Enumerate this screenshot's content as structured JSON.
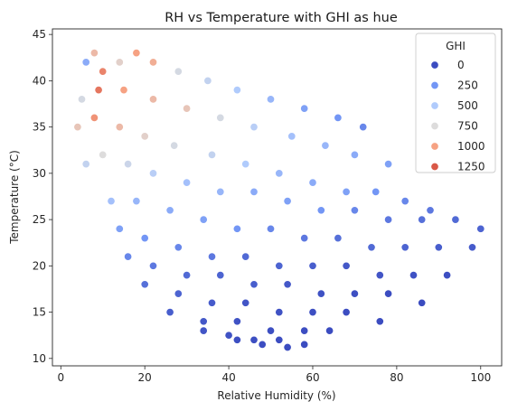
{
  "chart_data": {
    "type": "scatter",
    "title": "RH vs Temperature with GHI as hue",
    "xlabel": "Relative Humidity (%)",
    "ylabel": "Temperature (°C)",
    "xlim": [
      -2,
      105
    ],
    "ylim": [
      9.2,
      45.6
    ],
    "x_ticks": [
      0,
      20,
      40,
      60,
      80,
      100
    ],
    "y_ticks": [
      10,
      15,
      20,
      25,
      30,
      35,
      40,
      45
    ],
    "grid": false,
    "hue": {
      "name": "GHI",
      "palette": "coolwarm",
      "range": [
        0,
        1300
      ],
      "legend_values": [
        0,
        250,
        500,
        750,
        1000,
        1250
      ],
      "legend_colors": [
        "#3b4cc0",
        "#7396f5",
        "#b0cbfc",
        "#dddcdc",
        "#f6a283",
        "#d95847"
      ]
    },
    "legend_placement": "top-right",
    "marker_edge_color": "#ffffff",
    "series": [
      {
        "x": [
          6,
          8,
          10,
          14,
          18,
          22,
          28,
          35,
          42,
          50,
          58,
          66,
          72,
          5,
          9,
          15,
          22,
          30,
          38,
          46,
          55,
          63,
          70,
          78,
          4,
          8,
          14,
          20,
          27,
          36,
          44,
          52,
          60,
          68,
          75,
          82,
          88,
          6,
          10,
          16,
          22,
          30,
          38,
          46,
          54,
          62,
          70,
          78,
          86,
          94,
          100,
          12,
          18,
          26,
          34,
          42,
          50,
          58,
          66,
          74,
          82,
          90,
          98,
          14,
          20,
          28,
          36,
          44,
          52,
          60,
          68,
          76,
          84,
          92,
          16,
          22,
          30,
          38,
          46,
          54,
          62,
          70,
          78,
          86,
          20,
          28,
          36,
          44,
          52,
          60,
          68,
          76,
          26,
          34,
          42,
          50,
          58,
          64,
          34,
          40,
          46,
          52,
          58,
          42,
          48,
          54
        ],
        "y": [
          42,
          43,
          41,
          42,
          43,
          42,
          41,
          40,
          39,
          38,
          37,
          36,
          35,
          38,
          39,
          39,
          38,
          37,
          36,
          35,
          34,
          33,
          32,
          31,
          35,
          36,
          35,
          34,
          33,
          32,
          31,
          30,
          29,
          28,
          28,
          27,
          26,
          31,
          32,
          31,
          30,
          29,
          28,
          28,
          27,
          26,
          26,
          25,
          25,
          25,
          24,
          27,
          27,
          26,
          25,
          24,
          24,
          23,
          23,
          22,
          22,
          22,
          22,
          24,
          23,
          22,
          21,
          21,
          20,
          20,
          20,
          19,
          19,
          19,
          21,
          20,
          19,
          19,
          18,
          18,
          17,
          17,
          17,
          16,
          18,
          17,
          16,
          16,
          15,
          15,
          15,
          14,
          15,
          14,
          14,
          13,
          13,
          13,
          13,
          12.5,
          12,
          12,
          11.5,
          12,
          11.5,
          11.2
        ],
        "ghi": [
          350,
          900,
          1100,
          800,
          1000,
          950,
          700,
          600,
          500,
          400,
          300,
          250,
          200,
          700,
          1150,
          1000,
          900,
          850,
          700,
          550,
          450,
          400,
          350,
          300,
          850,
          1050,
          900,
          800,
          700,
          600,
          500,
          400,
          350,
          300,
          250,
          200,
          150,
          600,
          750,
          650,
          550,
          450,
          400,
          350,
          300,
          250,
          200,
          150,
          120,
          100,
          80,
          450,
          400,
          350,
          300,
          250,
          200,
          150,
          120,
          100,
          80,
          60,
          50,
          300,
          250,
          200,
          150,
          100,
          80,
          60,
          40,
          30,
          20,
          10,
          200,
          150,
          100,
          80,
          60,
          40,
          20,
          10,
          5,
          0,
          120,
          80,
          50,
          30,
          20,
          10,
          5,
          0,
          60,
          40,
          20,
          10,
          5,
          0,
          30,
          20,
          10,
          5,
          0,
          10,
          5,
          0
        ]
      }
    ]
  }
}
